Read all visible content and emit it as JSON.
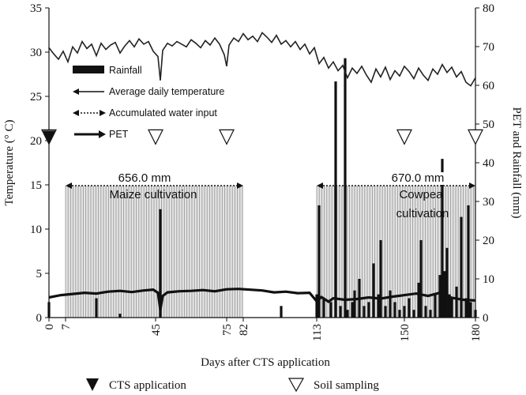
{
  "chart_data": {
    "type": "line",
    "xlabel": "Days after CTS application",
    "ylabel_left": "Temperature (° C)",
    "ylabel_right": "PET and Rainfall (mm)",
    "x_ticks": [
      0,
      7,
      45,
      75,
      82,
      113,
      150,
      180
    ],
    "xlim": [
      0,
      180
    ],
    "ylim_left": [
      0,
      35
    ],
    "ylim_right": [
      0,
      80
    ],
    "left_ticks": [
      0,
      5,
      10,
      15,
      20,
      25,
      30,
      35
    ],
    "right_ticks": [
      0,
      10,
      20,
      30,
      40,
      50,
      60,
      70,
      80
    ],
    "legend": {
      "rainfall": "Rainfall",
      "temperature": "Average daily temperature",
      "water_input": "Accumulated water input",
      "pet": "PET"
    },
    "annotations": {
      "maize_total": "656.0 mm",
      "maize_label": "Maize cultivation",
      "cowpea_total": "670.0 mm",
      "cowpea_label_1": "Cowpea",
      "cowpea_label_2": "cultivation"
    },
    "bottom_legend": {
      "cts": "CTS application",
      "soil": "Soil sampling"
    },
    "periods": [
      {
        "name": "maize",
        "start": 7,
        "end": 82
      },
      {
        "name": "cowpea",
        "start": 113,
        "end": 180
      }
    ],
    "cts_application_days": [
      0
    ],
    "soil_sampling_days": [
      0,
      45,
      75,
      150,
      180
    ],
    "temperature_series": {
      "name": "Average daily temperature",
      "x": [
        0,
        2,
        4,
        6,
        8,
        10,
        12,
        14,
        16,
        18,
        20,
        22,
        24,
        26,
        28,
        30,
        32,
        34,
        36,
        38,
        40,
        42,
        44,
        46,
        47,
        48,
        50,
        52,
        54,
        56,
        58,
        60,
        62,
        64,
        66,
        68,
        70,
        72,
        74,
        75,
        76,
        78,
        80,
        82,
        84,
        86,
        88,
        90,
        92,
        94,
        96,
        98,
        100,
        102,
        104,
        106,
        108,
        110,
        112,
        114,
        116,
        118,
        120,
        122,
        124,
        126,
        128,
        130,
        132,
        134,
        136,
        138,
        140,
        142,
        144,
        146,
        148,
        150,
        152,
        154,
        156,
        158,
        160,
        162,
        164,
        166,
        168,
        170,
        172,
        174,
        176,
        178,
        180
      ],
      "y": [
        30.5,
        29.8,
        29.2,
        30.1,
        28.9,
        30.6,
        29.9,
        31.2,
        30.4,
        30.9,
        29.6,
        31.0,
        30.3,
        30.8,
        31.1,
        29.9,
        30.7,
        31.3,
        30.6,
        31.5,
        30.9,
        31.2,
        30.1,
        29.5,
        26.8,
        30.2,
        31.0,
        30.7,
        31.2,
        30.9,
        30.6,
        31.4,
        31.0,
        30.5,
        31.3,
        30.8,
        31.6,
        30.9,
        29.7,
        28.4,
        30.8,
        31.6,
        31.2,
        32.1,
        31.4,
        31.8,
        31.2,
        32.2,
        31.7,
        31.1,
        31.9,
        30.9,
        31.3,
        30.6,
        31.2,
        30.3,
        30.9,
        29.8,
        30.5,
        28.7,
        29.4,
        28.2,
        28.9,
        27.9,
        28.5,
        27.1,
        28.2,
        27.6,
        28.4,
        27.4,
        26.6,
        28.1,
        27.2,
        28.3,
        26.9,
        27.9,
        27.3,
        28.4,
        27.8,
        27.0,
        28.2,
        27.4,
        26.8,
        28.1,
        27.5,
        28.6,
        27.7,
        28.3,
        27.2,
        27.8,
        26.6,
        26.2,
        27.1
      ]
    },
    "pet_series": {
      "name": "PET",
      "x": [
        0,
        5,
        10,
        15,
        20,
        25,
        30,
        35,
        40,
        44,
        46,
        47,
        48,
        50,
        55,
        60,
        65,
        70,
        75,
        80,
        85,
        90,
        95,
        100,
        105,
        110,
        113,
        115,
        118,
        120,
        125,
        130,
        135,
        140,
        145,
        150,
        155,
        160,
        165,
        170,
        175,
        180
      ],
      "y": [
        5.2,
        5.8,
        6.1,
        6.4,
        6.2,
        6.7,
        6.9,
        6.6,
        7.0,
        7.2,
        6.4,
        2.0,
        5.6,
        6.5,
        6.8,
        6.9,
        7.1,
        6.8,
        7.3,
        7.4,
        7.2,
        7.0,
        6.5,
        6.7,
        6.3,
        6.4,
        4.2,
        5.3,
        4.1,
        5.0,
        4.6,
        4.8,
        5.2,
        4.9,
        5.4,
        5.8,
        6.2,
        5.6,
        6.4,
        5.1,
        4.6,
        4.4
      ]
    },
    "rainfall_series": {
      "name": "Rainfall",
      "x": [
        0,
        20,
        30,
        47,
        98,
        113,
        114,
        116,
        119,
        121,
        123,
        125,
        126,
        128,
        129,
        131,
        133,
        135,
        137,
        139,
        140,
        142,
        144,
        146,
        148,
        150,
        152,
        154,
        156,
        157,
        159,
        161,
        163,
        165,
        166,
        167,
        168,
        169,
        170,
        172,
        174,
        176,
        177,
        178,
        180
      ],
      "values": [
        4,
        5,
        1,
        28,
        3,
        6,
        29,
        5,
        4,
        61,
        3,
        67,
        2,
        4,
        7,
        10,
        3,
        4,
        14,
        6,
        20,
        3,
        7,
        4,
        2,
        3,
        5,
        2,
        9,
        20,
        3,
        2,
        6,
        11,
        41,
        12,
        18,
        6,
        5,
        8,
        26,
        5,
        29,
        4,
        2
      ]
    }
  }
}
